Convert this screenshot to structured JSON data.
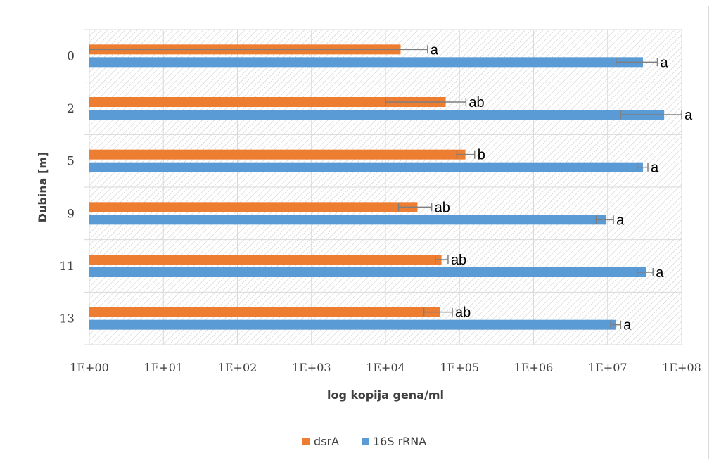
{
  "chart_data": {
    "type": "bar",
    "orientation": "horizontal",
    "x_scale": "log",
    "xlim": [
      "1E+00",
      "1E+08"
    ],
    "x_ticks": [
      "1E+00",
      "1E+01",
      "1E+02",
      "1E+03",
      "1E+04",
      "1E+05",
      "1E+06",
      "1E+07",
      "1E+08"
    ],
    "xlabel": "log kopija gena/ml",
    "ylabel": "Dubina [m]",
    "categories": [
      "0",
      "2",
      "5",
      "9",
      "11",
      "13"
    ],
    "series": [
      {
        "name": "dsrA",
        "color": "#ED7D31",
        "values": [
          16000,
          65000,
          120000,
          27000,
          57000,
          55000
        ],
        "error_low": [
          16000,
          55000,
          28000,
          12000,
          10000,
          22000
        ],
        "error_high": [
          21000,
          57000,
          40000,
          15000,
          13000,
          25000
        ],
        "significance": [
          "a",
          "ab",
          "b",
          "ab",
          "ab",
          "ab"
        ]
      },
      {
        "name": "16S rRNA",
        "color": "#5B9BD5",
        "values": [
          30000000,
          58000000,
          30000000,
          9500000,
          33000000,
          13000000
        ],
        "error_low": [
          17000000,
          43000000,
          5000000,
          2500000,
          8000000,
          2000000
        ],
        "error_high": [
          17000000,
          42000000,
          5000000,
          2500000,
          8000000,
          2000000
        ],
        "significance": [
          "a",
          "a",
          "a",
          "a",
          "a",
          "a"
        ]
      }
    ],
    "grid": true,
    "legend": "bottom",
    "plot_background": "hatched"
  }
}
